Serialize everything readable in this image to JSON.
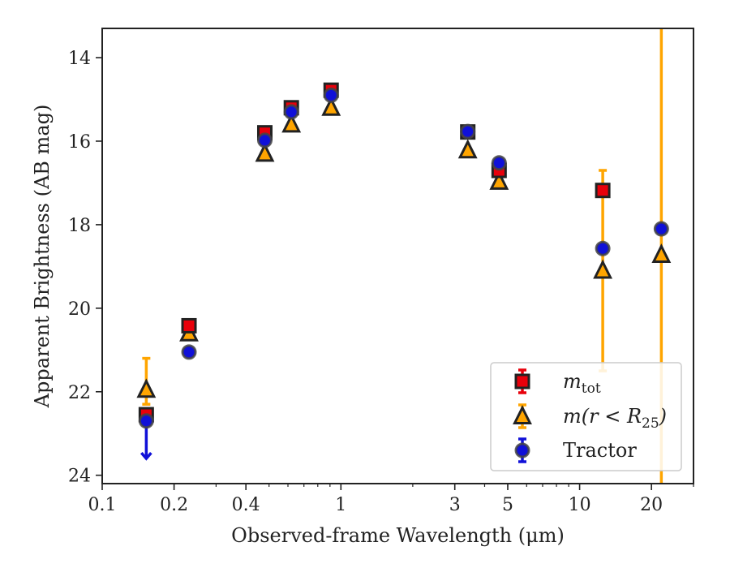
{
  "chart_data": {
    "type": "scatter",
    "xlabel": "Observed-frame Wavelength (μm)",
    "ylabel": "Apparent Brightness (AB mag)",
    "xscale": "log",
    "xlim": [
      0.1,
      30
    ],
    "ylim": [
      24.2,
      13.3
    ],
    "y_inverted": true,
    "x_ticks": [
      {
        "value": 0.1,
        "label": "0.1"
      },
      {
        "value": 0.2,
        "label": "0.2"
      },
      {
        "value": 0.4,
        "label": "0.4"
      },
      {
        "value": 1,
        "label": "1"
      },
      {
        "value": 3,
        "label": "3"
      },
      {
        "value": 5,
        "label": "5"
      },
      {
        "value": 10,
        "label": "10"
      },
      {
        "value": 20,
        "label": "20"
      }
    ],
    "y_ticks": [
      {
        "value": 14,
        "label": "14"
      },
      {
        "value": 16,
        "label": "16"
      },
      {
        "value": 18,
        "label": "18"
      },
      {
        "value": 20,
        "label": "20"
      },
      {
        "value": 22,
        "label": "22"
      },
      {
        "value": 24,
        "label": "24"
      }
    ],
    "grid": false,
    "legend_position": "lower-right",
    "series": [
      {
        "name": "m_tot",
        "legend_label_main": "m",
        "legend_label_sub": "tot",
        "marker": "square",
        "color": "#e8000b",
        "edge_color": "#222222",
        "errorbar_color": "#e8000b",
        "points": [
          {
            "x": 0.153,
            "y": 22.55,
            "yerr": 0.0
          },
          {
            "x": 0.231,
            "y": 20.42,
            "yerr": 0.0
          },
          {
            "x": 0.48,
            "y": 15.8,
            "yerr": 0.0
          },
          {
            "x": 0.62,
            "y": 15.2,
            "yerr": 0.0
          },
          {
            "x": 0.91,
            "y": 14.78,
            "yerr": 0.0
          },
          {
            "x": 3.4,
            "y": 15.78,
            "yerr": 0.0
          },
          {
            "x": 4.6,
            "y": 16.7,
            "yerr": 0.0
          },
          {
            "x": 12.5,
            "y": 17.18,
            "yerr": 0.0
          }
        ]
      },
      {
        "name": "m(r<R_25)",
        "legend_label_main": "m(r<R",
        "legend_label_sub": "25",
        "legend_label_end": ")",
        "marker": "triangle",
        "color": "#ffa500",
        "edge_color": "#222222",
        "errorbar_color": "#ffa500",
        "points": [
          {
            "x": 0.153,
            "y": 21.95,
            "ylow": 22.3,
            "yhigh": 21.2
          },
          {
            "x": 0.231,
            "y": 20.6,
            "yerr": 0.0
          },
          {
            "x": 0.48,
            "y": 16.3,
            "yerr": 0.0
          },
          {
            "x": 0.62,
            "y": 15.6,
            "yerr": 0.0
          },
          {
            "x": 0.91,
            "y": 15.2,
            "yerr": 0.0
          },
          {
            "x": 3.4,
            "y": 16.22,
            "yerr": 0.0
          },
          {
            "x": 4.6,
            "y": 16.97,
            "yerr": 0.0
          },
          {
            "x": 12.5,
            "y": 19.1,
            "ylow": 21.5,
            "yhigh": 16.7
          },
          {
            "x": 22,
            "y": 18.72,
            "ylow": 24.2,
            "yhigh": 13.3
          }
        ]
      },
      {
        "name": "Tractor",
        "marker": "circle",
        "color": "#1010d8",
        "edge_color": "#444444",
        "errorbar_color": "#1010d8",
        "points": [
          {
            "x": 0.153,
            "y": 22.7,
            "upper_limit": true,
            "arrow_to": 23.6
          },
          {
            "x": 0.231,
            "y": 21.05,
            "yerr": 0.0
          },
          {
            "x": 0.48,
            "y": 15.98,
            "yerr": 0.0
          },
          {
            "x": 0.62,
            "y": 15.3,
            "yerr": 0.0
          },
          {
            "x": 0.91,
            "y": 14.9,
            "yerr": 0.0
          },
          {
            "x": 3.4,
            "y": 15.77,
            "yerr": 0.0
          },
          {
            "x": 4.6,
            "y": 16.52,
            "yerr": 0.0
          },
          {
            "x": 12.5,
            "y": 18.57,
            "yerr": 0.0
          },
          {
            "x": 22,
            "y": 18.1,
            "yerr": 0.0
          }
        ]
      }
    ],
    "legend": [
      {
        "series": "m_tot",
        "label_main": "m",
        "label_sub": "tot",
        "label_end": ""
      },
      {
        "series": "m(r<R_25)",
        "label_main": "m(r < R",
        "label_sub": "25",
        "label_end": ")"
      },
      {
        "series": "Tractor",
        "label_main": "Tractor",
        "label_sub": "",
        "label_end": ""
      }
    ]
  }
}
